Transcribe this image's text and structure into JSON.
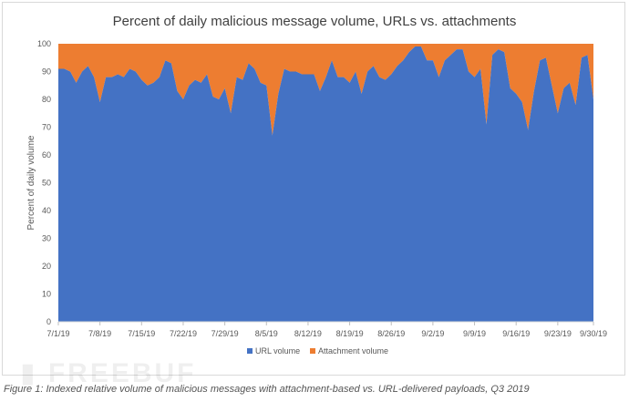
{
  "chart_data": {
    "type": "area",
    "stacked": true,
    "percent": true,
    "title": "Percent of daily malicious message volume, URLs vs. attachments",
    "ylabel": "Percent of daily volume",
    "xlabel": "",
    "ylim": [
      0,
      100
    ],
    "yticks": [
      0,
      10,
      20,
      30,
      40,
      50,
      60,
      70,
      80,
      90,
      100
    ],
    "xticks": [
      "7/1/19",
      "7/8/19",
      "7/15/19",
      "7/22/19",
      "7/29/19",
      "8/5/19",
      "8/12/19",
      "8/19/19",
      "8/26/19",
      "9/2/19",
      "9/9/19",
      "9/16/19",
      "9/23/19",
      "9/30/19"
    ],
    "grid": false,
    "legend_position": "bottom",
    "colors": {
      "URL volume": "#4472c4",
      "Attachment volume": "#ed7d31"
    },
    "series": [
      {
        "name": "URL volume",
        "values": [
          91,
          91,
          90,
          86,
          90,
          92,
          88,
          79,
          88,
          88,
          89,
          88,
          91,
          90,
          87,
          85,
          86,
          88,
          94,
          93,
          83,
          80,
          85,
          87,
          86,
          89,
          81,
          80,
          84,
          75,
          88,
          87,
          93,
          91,
          86,
          85,
          67,
          82,
          91,
          90,
          90,
          89,
          89,
          89,
          83,
          88,
          94,
          88,
          88,
          86,
          90,
          82,
          90,
          92,
          88,
          87,
          89,
          92,
          94,
          97,
          99,
          99,
          94,
          94,
          88,
          94,
          96,
          98,
          98,
          90,
          88,
          91,
          71,
          96,
          98,
          97,
          84,
          82,
          79,
          69,
          83,
          94,
          95,
          85,
          75,
          84,
          86,
          78,
          95,
          96,
          80
        ]
      },
      {
        "name": "Attachment volume",
        "values": [
          9,
          9,
          10,
          14,
          10,
          8,
          12,
          21,
          12,
          12,
          11,
          12,
          9,
          10,
          13,
          15,
          14,
          12,
          6,
          7,
          17,
          20,
          15,
          13,
          14,
          11,
          19,
          20,
          16,
          25,
          12,
          13,
          7,
          9,
          14,
          15,
          33,
          18,
          9,
          10,
          10,
          11,
          11,
          11,
          17,
          12,
          6,
          12,
          12,
          14,
          10,
          18,
          10,
          8,
          12,
          13,
          11,
          8,
          6,
          3,
          1,
          1,
          6,
          6,
          12,
          6,
          4,
          2,
          2,
          10,
          12,
          9,
          29,
          4,
          2,
          3,
          16,
          18,
          21,
          31,
          17,
          6,
          5,
          15,
          25,
          16,
          14,
          22,
          5,
          4,
          20
        ]
      }
    ]
  },
  "caption": "Figure 1: Indexed relative volume of malicious messages with attachment-based vs. URL-delivered payloads, Q3 2019",
  "watermark": "FREEBUF"
}
